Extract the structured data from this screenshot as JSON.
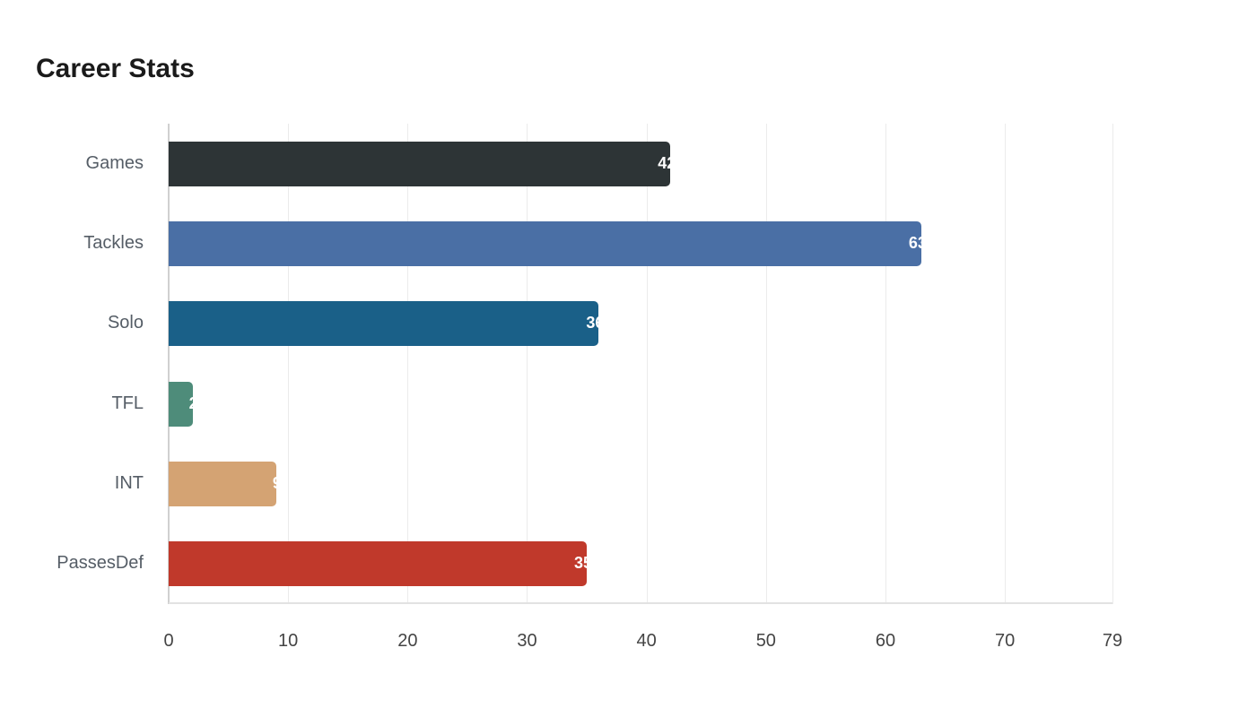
{
  "chart_data": {
    "type": "bar",
    "orientation": "horizontal",
    "title": "Career Stats",
    "xlabel": "",
    "ylabel": "",
    "categories": [
      "Games",
      "Tackles",
      "Solo",
      "TFL",
      "INT",
      "PassesDef"
    ],
    "values": [
      42,
      63,
      36,
      2,
      9,
      35
    ],
    "colors": [
      "#2d3436",
      "#4a6fa5",
      "#1a6088",
      "#4e8c7a",
      "#d4a373",
      "#c0392b"
    ],
    "xlim": [
      0,
      79
    ],
    "xticks": [
      0,
      10,
      20,
      30,
      40,
      50,
      60,
      70,
      79
    ],
    "grid": true,
    "legend": false
  }
}
